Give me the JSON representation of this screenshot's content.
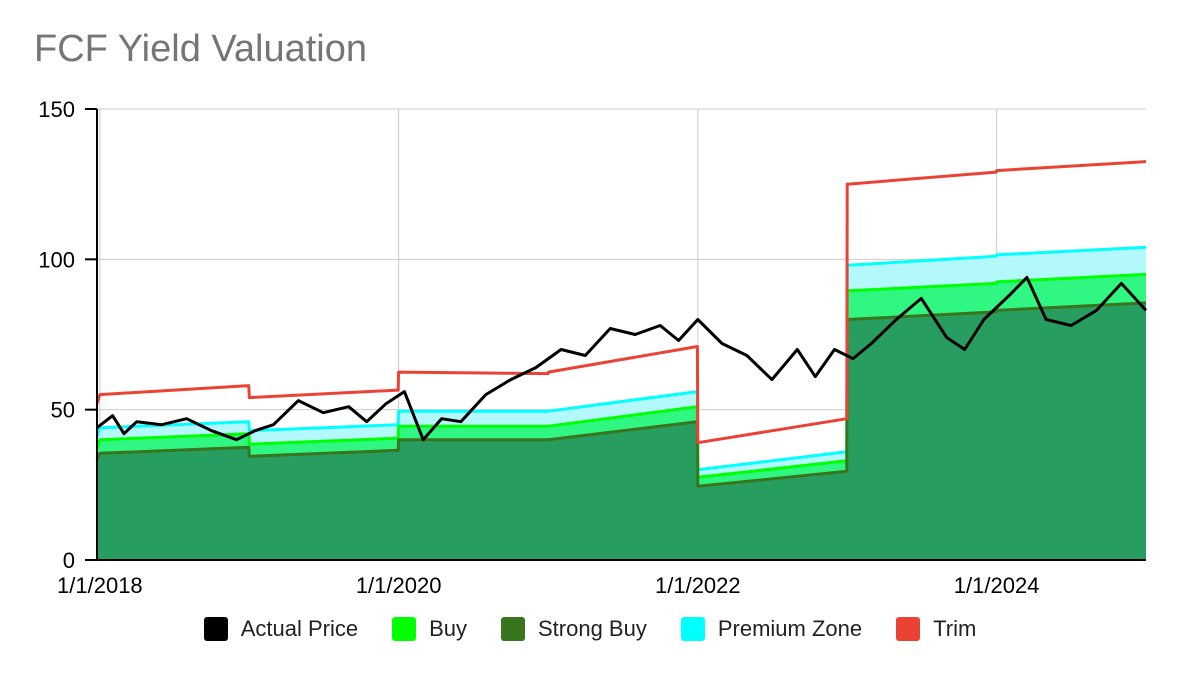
{
  "chart_data": {
    "type": "area",
    "title": "FCF Yield Valuation",
    "xlabel": "",
    "ylabel": "",
    "ylim": [
      0,
      150
    ],
    "yticks": [
      "0",
      "50",
      "100",
      "150"
    ],
    "xrange": [
      "2017-12-25",
      "2024-12-31"
    ],
    "xticks": [
      {
        "date": "2018-01-01",
        "label": "1/1/2018"
      },
      {
        "date": "2020-01-01",
        "label": "1/1/2020"
      },
      {
        "date": "2022-01-01",
        "label": "1/1/2022"
      },
      {
        "date": "2024-01-01",
        "label": "1/1/2024"
      }
    ],
    "grid": true,
    "legend_position": "bottom",
    "series": [
      {
        "name": "Trim",
        "color": "#ea4335",
        "points": [
          [
            "2017-12-25",
            52
          ],
          [
            "2018-01-01",
            55
          ],
          [
            "2018-12-31",
            58
          ],
          [
            "2019-01-01",
            54
          ],
          [
            "2019-12-31",
            56.5
          ],
          [
            "2020-01-01",
            62.5
          ],
          [
            "2020-12-31",
            62
          ],
          [
            "2021-01-01",
            62.5
          ],
          [
            "2021-12-31",
            71
          ],
          [
            "2022-01-01",
            39
          ],
          [
            "2022-12-31",
            47
          ],
          [
            "2023-01-01",
            125
          ],
          [
            "2023-12-31",
            129
          ],
          [
            "2024-01-01",
            129.5
          ],
          [
            "2024-12-31",
            132.5
          ]
        ]
      },
      {
        "name": "Premium Zone",
        "color": "#00ffff",
        "points": [
          [
            "2017-12-25",
            41
          ],
          [
            "2018-01-01",
            44
          ],
          [
            "2018-12-31",
            46
          ],
          [
            "2019-01-01",
            43
          ],
          [
            "2019-12-31",
            45
          ],
          [
            "2020-01-01",
            49.5
          ],
          [
            "2020-12-31",
            49.5
          ],
          [
            "2021-01-01",
            49.5
          ],
          [
            "2021-12-31",
            56
          ],
          [
            "2022-01-01",
            30
          ],
          [
            "2022-12-31",
            36
          ],
          [
            "2023-01-01",
            98
          ],
          [
            "2023-12-31",
            101
          ],
          [
            "2024-01-01",
            101.5
          ],
          [
            "2024-12-31",
            104
          ]
        ]
      },
      {
        "name": "Buy",
        "color": "#00ff00",
        "points": [
          [
            "2017-12-25",
            37
          ],
          [
            "2018-01-01",
            40
          ],
          [
            "2018-12-31",
            42
          ],
          [
            "2019-01-01",
            38.5
          ],
          [
            "2019-12-31",
            40.5
          ],
          [
            "2020-01-01",
            44.5
          ],
          [
            "2020-12-31",
            44.5
          ],
          [
            "2021-01-01",
            44.5
          ],
          [
            "2021-12-31",
            51
          ],
          [
            "2022-01-01",
            27.5
          ],
          [
            "2022-12-31",
            33
          ],
          [
            "2023-01-01",
            89.5
          ],
          [
            "2023-12-31",
            92
          ],
          [
            "2024-01-01",
            92.5
          ],
          [
            "2024-12-31",
            95
          ]
        ]
      },
      {
        "name": "Strong Buy",
        "color": "#38761d",
        "points": [
          [
            "2017-12-25",
            33.5
          ],
          [
            "2018-01-01",
            35.5
          ],
          [
            "2018-12-31",
            37.5
          ],
          [
            "2019-01-01",
            34.5
          ],
          [
            "2019-12-31",
            36.5
          ],
          [
            "2020-01-01",
            40
          ],
          [
            "2020-12-31",
            40
          ],
          [
            "2021-01-01",
            40
          ],
          [
            "2021-12-31",
            46
          ],
          [
            "2022-01-01",
            24.5
          ],
          [
            "2022-12-31",
            29.5
          ],
          [
            "2023-01-01",
            80
          ],
          [
            "2023-12-31",
            82.5
          ],
          [
            "2024-01-01",
            83
          ],
          [
            "2024-12-31",
            85.5
          ]
        ]
      },
      {
        "name": "Actual Price",
        "color": "#000000",
        "points": [
          [
            "2017-12-25",
            44
          ],
          [
            "2018-02-01",
            48
          ],
          [
            "2018-03-01",
            42
          ],
          [
            "2018-04-01",
            46
          ],
          [
            "2018-06-01",
            45
          ],
          [
            "2018-08-01",
            47
          ],
          [
            "2018-10-01",
            43
          ],
          [
            "2018-12-01",
            40
          ],
          [
            "2019-01-15",
            43
          ],
          [
            "2019-03-01",
            45
          ],
          [
            "2019-05-01",
            53
          ],
          [
            "2019-07-01",
            49
          ],
          [
            "2019-09-01",
            51
          ],
          [
            "2019-10-15",
            46
          ],
          [
            "2019-12-01",
            52
          ],
          [
            "2020-01-15",
            56
          ],
          [
            "2020-03-01",
            40
          ],
          [
            "2020-04-15",
            47
          ],
          [
            "2020-06-01",
            46
          ],
          [
            "2020-08-01",
            55
          ],
          [
            "2020-10-01",
            60
          ],
          [
            "2020-12-01",
            64
          ],
          [
            "2021-02-01",
            70
          ],
          [
            "2021-04-01",
            68
          ],
          [
            "2021-06-01",
            77
          ],
          [
            "2021-08-01",
            75
          ],
          [
            "2021-10-01",
            78
          ],
          [
            "2021-11-15",
            73
          ],
          [
            "2022-01-01",
            80
          ],
          [
            "2022-03-01",
            72
          ],
          [
            "2022-05-01",
            68
          ],
          [
            "2022-07-01",
            60
          ],
          [
            "2022-09-01",
            70
          ],
          [
            "2022-10-15",
            61
          ],
          [
            "2022-12-01",
            70
          ],
          [
            "2023-01-15",
            67
          ],
          [
            "2023-03-01",
            72
          ],
          [
            "2023-05-01",
            80
          ],
          [
            "2023-07-01",
            87
          ],
          [
            "2023-09-01",
            74
          ],
          [
            "2023-10-15",
            70
          ],
          [
            "2023-12-01",
            80
          ],
          [
            "2024-02-01",
            88
          ],
          [
            "2024-03-15",
            94
          ],
          [
            "2024-05-01",
            80
          ],
          [
            "2024-07-01",
            78
          ],
          [
            "2024-09-01",
            83
          ],
          [
            "2024-11-01",
            92
          ],
          [
            "2024-12-31",
            83
          ]
        ]
      }
    ]
  },
  "legend": {
    "items": [
      {
        "label": "Actual Price",
        "color": "#000000"
      },
      {
        "label": "Buy",
        "color": "#00ff00"
      },
      {
        "label": "Strong Buy",
        "color": "#38761d"
      },
      {
        "label": "Premium Zone",
        "color": "#00ffff"
      },
      {
        "label": "Trim",
        "color": "#ea4335"
      }
    ]
  }
}
